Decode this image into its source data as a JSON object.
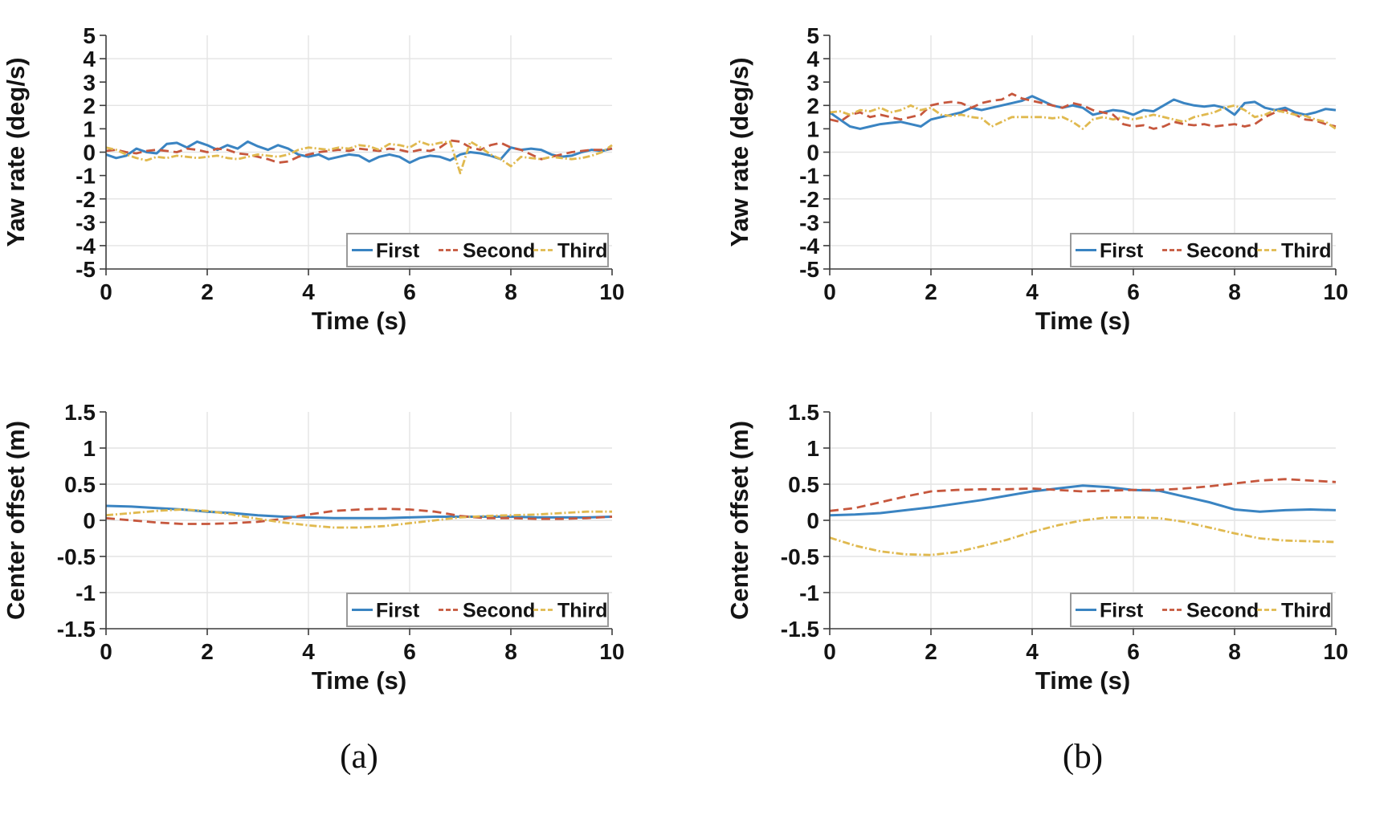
{
  "figure": {
    "captions": {
      "a": "(a)",
      "b": "(b)"
    }
  },
  "style": {
    "colors": {
      "first": "#3a84c2",
      "second": "#c6573d",
      "third": "#e0b94f",
      "grid": "#e4e4e4",
      "axis": "#3c3c3c",
      "text": "#141414",
      "legend_border": "#9a9a9a",
      "legend_bg": "#ffffff"
    }
  },
  "chart_data": [
    {
      "id": "yaw-rate-a",
      "type": "line",
      "position": "top-left",
      "title": "",
      "xlabel": "Time (s)",
      "ylabel": "Yaw rate (deg/s)",
      "xlim": [
        0,
        10
      ],
      "ylim": [
        -5,
        5
      ],
      "xticks": [
        0,
        2,
        4,
        6,
        8,
        10
      ],
      "yticks": [
        5,
        4,
        3,
        2,
        1,
        0,
        -1,
        -2,
        -3,
        -4,
        -5
      ],
      "grid_x": [
        2,
        4,
        6,
        8
      ],
      "grid_y": [
        4,
        2,
        0,
        -2,
        -4
      ],
      "legend_position": "south-east-horizontal",
      "x_step": 0.2,
      "series": [
        {
          "name": "First",
          "values": [
            -0.1,
            -0.25,
            -0.15,
            0.15,
            0,
            -0.05,
            0.35,
            0.4,
            0.2,
            0.45,
            0.3,
            0.1,
            0.3,
            0.15,
            0.45,
            0.25,
            0.1,
            0.3,
            0.15,
            -0.1,
            -0.2,
            -0.1,
            -0.3,
            -0.2,
            -0.1,
            -0.15,
            -0.4,
            -0.2,
            -0.1,
            -0.2,
            -0.45,
            -0.25,
            -0.15,
            -0.2,
            -0.35,
            -0.1,
            0,
            -0.05,
            -0.15,
            -0.3,
            0.2,
            0.1,
            0.15,
            0.1,
            -0.1,
            -0.2,
            -0.15,
            0,
            0.1,
            0.05,
            0.15
          ]
        },
        {
          "name": "Second",
          "values": [
            0.05,
            0.1,
            0,
            -0.05,
            0.05,
            0.1,
            0.05,
            0,
            0.15,
            0.1,
            0,
            0.15,
            0.1,
            -0.05,
            -0.1,
            -0.2,
            -0.3,
            -0.45,
            -0.4,
            -0.2,
            -0.1,
            0,
            0.05,
            0.1,
            0.05,
            0.15,
            0.1,
            0.05,
            0.15,
            0.1,
            0,
            0.1,
            0.05,
            0.2,
            0.5,
            0.45,
            0.2,
            0.1,
            0.3,
            0.4,
            0.2,
            0.1,
            -0.1,
            -0.3,
            -0.2,
            -0.1,
            0,
            0.05,
            0.1,
            0.1,
            0.15
          ]
        },
        {
          "name": "Third",
          "values": [
            0.2,
            0.1,
            -0.1,
            -0.25,
            -0.35,
            -0.2,
            -0.25,
            -0.15,
            -0.2,
            -0.25,
            -0.2,
            -0.15,
            -0.25,
            -0.3,
            -0.2,
            -0.1,
            -0.15,
            -0.2,
            -0.1,
            0.1,
            0.2,
            0.15,
            0.1,
            0.2,
            0.15,
            0.3,
            0.25,
            0.1,
            0.35,
            0.3,
            0.2,
            0.45,
            0.3,
            0.4,
            0.45,
            -0.9,
            0.45,
            0.2,
            -0.1,
            -0.3,
            -0.6,
            -0.2,
            -0.25,
            -0.3,
            -0.2,
            -0.25,
            -0.3,
            -0.25,
            -0.15,
            0,
            0.3
          ]
        }
      ]
    },
    {
      "id": "yaw-rate-b",
      "type": "line",
      "position": "top-right",
      "title": "",
      "xlabel": "Time (s)",
      "ylabel": "Yaw rate (deg/s)",
      "xlim": [
        0,
        10
      ],
      "ylim": [
        -5,
        5
      ],
      "xticks": [
        0,
        2,
        4,
        6,
        8,
        10
      ],
      "yticks": [
        5,
        4,
        3,
        2,
        1,
        0,
        -1,
        -2,
        -3,
        -4,
        -5
      ],
      "grid_x": [
        2,
        4,
        6,
        8
      ],
      "grid_y": [
        4,
        2,
        0,
        -2,
        -4
      ],
      "legend_position": "south-east-horizontal",
      "x_step": 0.2,
      "series": [
        {
          "name": "First",
          "values": [
            1.7,
            1.4,
            1.1,
            1,
            1.1,
            1.2,
            1.25,
            1.3,
            1.2,
            1.1,
            1.4,
            1.5,
            1.6,
            1.7,
            1.9,
            1.8,
            1.9,
            2,
            2.1,
            2.2,
            2.4,
            2.2,
            2,
            1.9,
            2,
            1.9,
            1.6,
            1.7,
            1.8,
            1.75,
            1.6,
            1.8,
            1.75,
            2,
            2.25,
            2.1,
            2,
            1.95,
            2,
            1.9,
            1.6,
            2.1,
            2.15,
            1.9,
            1.8,
            1.9,
            1.7,
            1.6,
            1.7,
            1.85,
            1.8
          ]
        },
        {
          "name": "Second",
          "values": [
            1.4,
            1.3,
            1.6,
            1.7,
            1.5,
            1.6,
            1.5,
            1.4,
            1.5,
            1.6,
            2,
            2.1,
            2.15,
            2.1,
            1.9,
            2.1,
            2.2,
            2.25,
            2.5,
            2.3,
            2.2,
            2.1,
            2,
            1.9,
            2.1,
            2,
            1.8,
            1.7,
            1.6,
            1.2,
            1.1,
            1.15,
            1,
            1.1,
            1.3,
            1.2,
            1.15,
            1.2,
            1.1,
            1.15,
            1.2,
            1.1,
            1.2,
            1.5,
            1.7,
            1.8,
            1.6,
            1.4,
            1.35,
            1.2,
            1.1
          ]
        },
        {
          "name": "Third",
          "values": [
            1.7,
            1.75,
            1.6,
            1.8,
            1.75,
            1.9,
            1.7,
            1.8,
            2,
            1.8,
            1.9,
            1.6,
            1.55,
            1.6,
            1.5,
            1.45,
            1.1,
            1.3,
            1.5,
            1.5,
            1.5,
            1.5,
            1.45,
            1.5,
            1.3,
            1,
            1.4,
            1.5,
            1.4,
            1.5,
            1.4,
            1.5,
            1.6,
            1.5,
            1.4,
            1.3,
            1.5,
            1.6,
            1.7,
            1.9,
            2,
            1.8,
            1.5,
            1.6,
            1.8,
            1.7,
            1.6,
            1.55,
            1.4,
            1.3,
            1
          ]
        }
      ]
    },
    {
      "id": "center-offset-a",
      "type": "line",
      "position": "bottom-left",
      "title": "",
      "xlabel": "Time (s)",
      "ylabel": "Center offset (m)",
      "xlim": [
        0,
        10
      ],
      "ylim": [
        -1.5,
        1.5
      ],
      "xticks": [
        0,
        2,
        4,
        6,
        8,
        10
      ],
      "yticks": [
        1.5,
        1,
        0.5,
        0,
        -0.5,
        -1,
        -1.5
      ],
      "grid_x": [
        2,
        4,
        6,
        8
      ],
      "grid_y": [
        1,
        0.5,
        0,
        -0.5,
        -1
      ],
      "legend_position": "south-east-horizontal",
      "x_step": 0.5,
      "series": [
        {
          "name": "First",
          "values": [
            0.2,
            0.19,
            0.17,
            0.15,
            0.12,
            0.1,
            0.07,
            0.05,
            0.04,
            0.03,
            0.03,
            0.03,
            0.04,
            0.05,
            0.05,
            0.05,
            0.05,
            0.04,
            0.04,
            0.04,
            0.05
          ]
        },
        {
          "name": "Second",
          "values": [
            0.03,
            0,
            -0.03,
            -0.05,
            -0.05,
            -0.04,
            -0.02,
            0.02,
            0.08,
            0.13,
            0.15,
            0.16,
            0.15,
            0.12,
            0.06,
            0.03,
            0.03,
            0.02,
            0.02,
            0.03,
            0.05
          ]
        },
        {
          "name": "Third",
          "values": [
            0.07,
            0.1,
            0.13,
            0.15,
            0.13,
            0.08,
            0.02,
            -0.03,
            -0.07,
            -0.1,
            -0.1,
            -0.08,
            -0.04,
            0,
            0.04,
            0.06,
            0.07,
            0.08,
            0.1,
            0.12,
            0.12
          ]
        }
      ]
    },
    {
      "id": "center-offset-b",
      "type": "line",
      "position": "bottom-right",
      "title": "",
      "xlabel": "Time (s)",
      "ylabel": "Center offset (m)",
      "xlim": [
        0,
        10
      ],
      "ylim": [
        -1.5,
        1.5
      ],
      "xticks": [
        0,
        2,
        4,
        6,
        8,
        10
      ],
      "yticks": [
        1.5,
        1,
        0.5,
        0,
        -0.5,
        -1,
        -1.5
      ],
      "grid_x": [
        2,
        4,
        6,
        8
      ],
      "grid_y": [
        1,
        0.5,
        0,
        -0.5,
        -1
      ],
      "legend_position": "south-east-horizontal",
      "x_step": 0.5,
      "series": [
        {
          "name": "First",
          "values": [
            0.07,
            0.08,
            0.1,
            0.14,
            0.18,
            0.23,
            0.28,
            0.34,
            0.4,
            0.44,
            0.48,
            0.46,
            0.42,
            0.41,
            0.33,
            0.25,
            0.15,
            0.12,
            0.14,
            0.15,
            0.14
          ]
        },
        {
          "name": "Second",
          "values": [
            0.13,
            0.17,
            0.25,
            0.33,
            0.4,
            0.42,
            0.43,
            0.43,
            0.44,
            0.42,
            0.4,
            0.41,
            0.42,
            0.42,
            0.44,
            0.47,
            0.51,
            0.55,
            0.57,
            0.55,
            0.53
          ]
        },
        {
          "name": "Third",
          "values": [
            -0.24,
            -0.35,
            -0.43,
            -0.47,
            -0.48,
            -0.44,
            -0.36,
            -0.27,
            -0.16,
            -0.07,
            0,
            0.04,
            0.04,
            0.03,
            -0.02,
            -0.1,
            -0.18,
            -0.25,
            -0.28,
            -0.29,
            -0.3
          ]
        }
      ]
    }
  ]
}
